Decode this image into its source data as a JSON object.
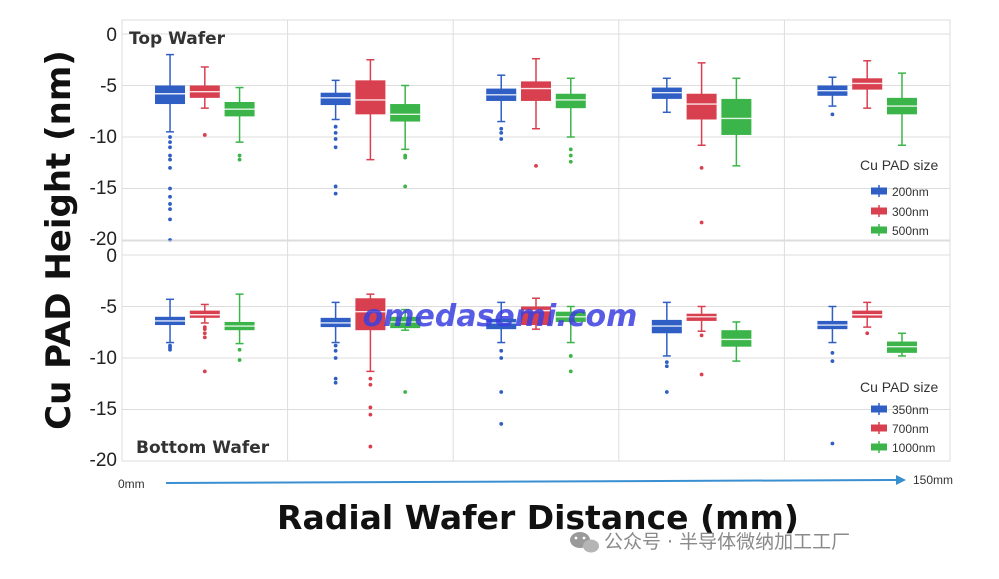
{
  "chart_data": [
    {
      "type": "box",
      "panel_title": "Top Wafer",
      "ylim": [
        -20,
        0
      ],
      "yticks": [
        "0",
        "-5",
        "-10",
        "-15",
        "-20"
      ],
      "legend": {
        "title": "Cu PAD size",
        "placement": "right"
      },
      "series": [
        {
          "name": "200nm",
          "color": "#2f5fc4"
        },
        {
          "name": "300nm",
          "color": "#d9404f"
        },
        {
          "name": "500nm",
          "color": "#3bb54a"
        }
      ],
      "groups": [
        [
          {
            "q1": -6.8,
            "median": -5.8,
            "q3": -5.0,
            "wlo": -9.5,
            "whi": -2.0,
            "outliers": [
              -10.0,
              -10.5,
              -11.0,
              -11.8,
              -12.2,
              -13.0,
              -15.0,
              -15.8,
              -16.5,
              -17.0,
              -18.0,
              -20.0
            ]
          },
          {
            "q1": -6.2,
            "median": -5.6,
            "q3": -5.0,
            "wlo": -7.2,
            "whi": -3.2,
            "outliers": [
              -9.8
            ]
          },
          {
            "q1": -8.0,
            "median": -7.3,
            "q3": -6.6,
            "wlo": -10.5,
            "whi": -5.2,
            "outliers": [
              -11.8,
              -12.2
            ]
          }
        ],
        [
          {
            "q1": -6.9,
            "median": -6.2,
            "q3": -5.7,
            "wlo": -8.3,
            "whi": -4.5,
            "outliers": [
              -9.0,
              -9.6,
              -10.2,
              -11.0,
              -14.8,
              -15.5
            ]
          },
          {
            "q1": -7.8,
            "median": -6.4,
            "q3": -4.5,
            "wlo": -12.2,
            "whi": -2.5,
            "outliers": []
          },
          {
            "q1": -8.5,
            "median": -7.8,
            "q3": -6.8,
            "wlo": -11.2,
            "whi": -5.0,
            "outliers": [
              -11.8,
              -12.0,
              -14.8
            ]
          }
        ],
        [
          {
            "q1": -6.5,
            "median": -5.9,
            "q3": -5.3,
            "wlo": -8.5,
            "whi": -4.0,
            "outliers": [
              -9.2,
              -9.6,
              -10.2
            ]
          },
          {
            "q1": -6.5,
            "median": -5.3,
            "q3": -4.6,
            "wlo": -9.2,
            "whi": -2.4,
            "outliers": [
              -12.8
            ]
          },
          {
            "q1": -7.2,
            "median": -6.4,
            "q3": -5.8,
            "wlo": -10.0,
            "whi": -4.3,
            "outliers": [
              -11.2,
              -11.8,
              -12.4
            ]
          }
        ],
        [
          {
            "q1": -6.3,
            "median": -5.7,
            "q3": -5.2,
            "wlo": -7.6,
            "whi": -4.3,
            "outliers": []
          },
          {
            "q1": -8.3,
            "median": -6.8,
            "q3": -5.8,
            "wlo": -10.8,
            "whi": -2.8,
            "outliers": [
              -13.0,
              -18.3
            ]
          },
          {
            "q1": -9.8,
            "median": -8.2,
            "q3": -6.3,
            "wlo": -12.8,
            "whi": -4.3,
            "outliers": []
          }
        ],
        [
          {
            "q1": -6.0,
            "median": -5.5,
            "q3": -5.0,
            "wlo": -7.0,
            "whi": -4.2,
            "outliers": [
              -7.8
            ]
          },
          {
            "q1": -5.4,
            "median": -4.8,
            "q3": -4.3,
            "wlo": -7.2,
            "whi": -2.6,
            "outliers": []
          },
          {
            "q1": -7.8,
            "median": -7.0,
            "q3": -6.2,
            "wlo": -10.8,
            "whi": -3.8,
            "outliers": []
          }
        ]
      ]
    },
    {
      "type": "box",
      "panel_title": "Bottom Wafer",
      "ylim": [
        -20,
        0
      ],
      "yticks": [
        "0",
        "-5",
        "-10",
        "-15",
        "-20"
      ],
      "legend": {
        "title": "Cu PAD size",
        "placement": "right"
      },
      "series": [
        {
          "name": "350nm",
          "color": "#2f5fc4"
        },
        {
          "name": "700nm",
          "color": "#d9404f"
        },
        {
          "name": "1000nm",
          "color": "#3bb54a"
        }
      ],
      "groups": [
        [
          {
            "q1": -6.8,
            "median": -6.4,
            "q3": -6.0,
            "wlo": -8.5,
            "whi": -4.3,
            "outliers": [
              -8.8,
              -9.0,
              -9.2
            ]
          },
          {
            "q1": -6.1,
            "median": -5.8,
            "q3": -5.4,
            "wlo": -6.6,
            "whi": -4.8,
            "outliers": [
              -7.0,
              -7.2,
              -7.6,
              -8.0,
              -11.3
            ]
          },
          {
            "q1": -7.3,
            "median": -6.9,
            "q3": -6.5,
            "wlo": -8.6,
            "whi": -3.8,
            "outliers": [
              -9.2,
              -10.2
            ]
          }
        ],
        [
          {
            "q1": -7.0,
            "median": -6.6,
            "q3": -6.1,
            "wlo": -8.5,
            "whi": -4.6,
            "outliers": [
              -8.8,
              -9.3,
              -10.0,
              -12.0,
              -12.4
            ]
          },
          {
            "q1": -7.3,
            "median": -5.5,
            "q3": -4.2,
            "wlo": -11.3,
            "whi": -3.8,
            "outliers": [
              -12.0,
              -12.6,
              -14.8,
              -15.5,
              -18.6
            ]
          },
          {
            "q1": -7.1,
            "median": -6.5,
            "q3": -6.0,
            "wlo": -7.3,
            "whi": -5.3,
            "outliers": [
              -13.3
            ]
          }
        ],
        [
          {
            "q1": -7.2,
            "median": -6.6,
            "q3": -6.2,
            "wlo": -8.5,
            "whi": -4.6,
            "outliers": [
              -9.3,
              -10.0,
              -13.3,
              -16.4
            ]
          },
          {
            "q1": -6.8,
            "median": -5.4,
            "q3": -5.0,
            "wlo": -7.2,
            "whi": -4.2,
            "outliers": []
          },
          {
            "q1": -6.5,
            "median": -6.0,
            "q3": -5.5,
            "wlo": -8.5,
            "whi": -5.0,
            "outliers": [
              -9.8,
              -11.3
            ]
          }
        ],
        [
          {
            "q1": -7.6,
            "median": -6.9,
            "q3": -6.3,
            "wlo": -9.8,
            "whi": -4.6,
            "outliers": [
              -10.4,
              -10.8,
              -13.3
            ]
          },
          {
            "q1": -6.4,
            "median": -6.0,
            "q3": -5.7,
            "wlo": -7.4,
            "whi": -5.0,
            "outliers": [
              -7.8,
              -11.6
            ]
          },
          {
            "q1": -8.9,
            "median": -8.2,
            "q3": -7.3,
            "wlo": -10.3,
            "whi": -6.5,
            "outliers": []
          }
        ],
        [
          {
            "q1": -7.2,
            "median": -6.8,
            "q3": -6.4,
            "wlo": -8.5,
            "whi": -5.0,
            "outliers": [
              -9.5,
              -10.3,
              -18.3
            ]
          },
          {
            "q1": -6.1,
            "median": -5.8,
            "q3": -5.4,
            "wlo": -7.0,
            "whi": -4.6,
            "outliers": [
              -7.6
            ]
          },
          {
            "q1": -9.5,
            "median": -8.9,
            "q3": -8.4,
            "wlo": -9.8,
            "whi": -7.6,
            "outliers": []
          }
        ]
      ]
    }
  ],
  "axes": {
    "ylabel": "Cu PAD Height (nm)",
    "xlabel": "Radial Wafer Distance (mm)",
    "x_start_label": "0mm",
    "x_end_label": "150mm"
  },
  "watermark": "omedasemi.com",
  "footer": {
    "text": "公众号 · 半导体微纳加工工厂"
  },
  "colors": {
    "grid": "#dddddd",
    "arrow": "#3a8fd1",
    "footer_icon": "#9a9a9a"
  }
}
